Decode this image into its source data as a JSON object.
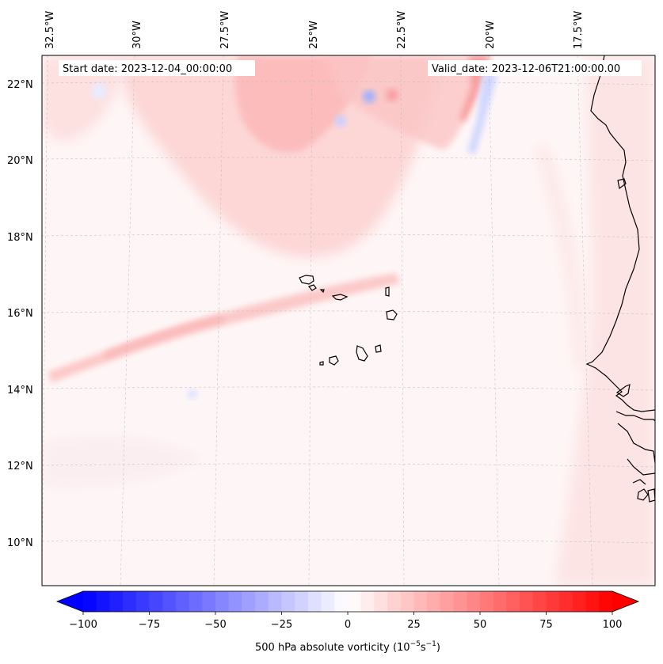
{
  "map": {
    "start_date_text": "Start date: 2023-12-04_00:00:00",
    "valid_date_text": "Valid_date: 2023-12-06T21:00:00.00",
    "longitude_labels": [
      "32.5°W",
      "30°W",
      "27.5°W",
      "25°W",
      "22.5°W",
      "20°W",
      "17.5°W"
    ],
    "latitude_labels": [
      "22°N",
      "20°N",
      "18°N",
      "16°N",
      "14°N",
      "12°N",
      "10°N"
    ],
    "features": [
      "Cape Verde islands",
      "West African coastline"
    ]
  },
  "colorbar": {
    "label_prefix": "500 hPa absolute vorticity (10",
    "label_exp1": "−5",
    "label_mid": "s",
    "label_exp2": "−1",
    "label_suffix": ")",
    "ticks": [
      "−100",
      "−75",
      "−50",
      "−25",
      "0",
      "25",
      "50",
      "75",
      "100"
    ],
    "min": -100,
    "max": 100,
    "colors": {
      "low": "#0000ff",
      "mid": "#ffffff",
      "high": "#ff0000"
    }
  }
}
